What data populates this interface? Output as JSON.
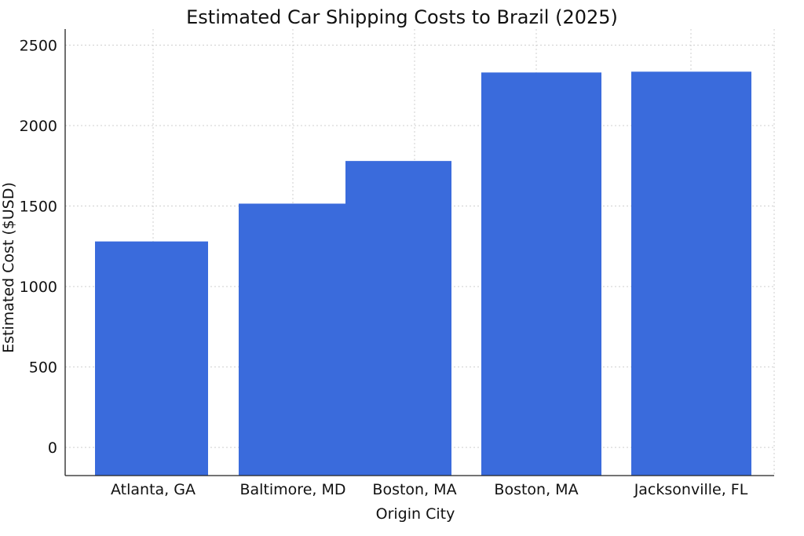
{
  "chart_data": {
    "type": "bar",
    "title": "Estimated Car Shipping Costs to Brazil (2025)",
    "xlabel": "Origin City",
    "ylabel": "Estimated Cost ($USD)",
    "categories": [
      "Atlanta, GA",
      "Baltimore, MD",
      "Boston, MA",
      "Boston, MA",
      "Jacksonville, FL"
    ],
    "values": [
      1280,
      1515,
      1780,
      2330,
      2335
    ],
    "ylim": [
      -175,
      2600
    ],
    "yticks": [
      0,
      500,
      1000,
      1500,
      2000,
      2500
    ],
    "grid": true,
    "bar_color": "#3a6bdc"
  }
}
